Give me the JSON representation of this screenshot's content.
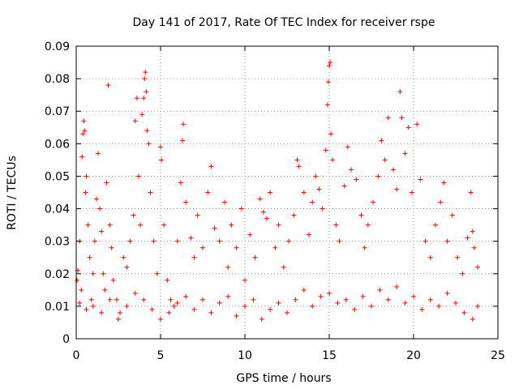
{
  "chart_data": {
    "type": "scatter",
    "title": "Day 141 of 2017, Rate Of TEC Index for receiver rspe",
    "xlabel": "GPS time / hours",
    "ylabel": "ROTI / TECUs",
    "xlim": [
      0,
      25
    ],
    "ylim": [
      0,
      0.09
    ],
    "xticks": [
      "0",
      "5",
      "10",
      "15",
      "20",
      "25"
    ],
    "yticks": [
      "0",
      "0.01",
      "0.02",
      "0.03",
      "0.04",
      "0.05",
      "0.06",
      "0.07",
      "0.08",
      "0.09"
    ],
    "grid": true,
    "marker": "+",
    "color": "#ff0000",
    "series": [
      {
        "points": [
          [
            0.05,
            0.018
          ],
          [
            0.1,
            0.021
          ],
          [
            0.2,
            0.03
          ],
          [
            0.3,
            0.015
          ],
          [
            0.35,
            0.056
          ],
          [
            0.4,
            0.063
          ],
          [
            0.45,
            0.067
          ],
          [
            0.5,
            0.064
          ],
          [
            0.55,
            0.045
          ],
          [
            0.6,
            0.05
          ],
          [
            0.7,
            0.035
          ],
          [
            0.8,
            0.025
          ],
          [
            0.9,
            0.012
          ],
          [
            1.0,
            0.02
          ],
          [
            1.1,
            0.03
          ],
          [
            1.2,
            0.043
          ],
          [
            1.3,
            0.057
          ],
          [
            1.4,
            0.04
          ],
          [
            1.5,
            0.033
          ],
          [
            1.6,
            0.02
          ],
          [
            1.7,
            0.015
          ],
          [
            1.8,
            0.048
          ],
          [
            1.9,
            0.078
          ],
          [
            2.0,
            0.035
          ],
          [
            2.1,
            0.028
          ],
          [
            2.2,
            0.018
          ],
          [
            2.4,
            0.012
          ],
          [
            2.6,
            0.008
          ],
          [
            2.8,
            0.025
          ],
          [
            3.0,
            0.022
          ],
          [
            3.2,
            0.03
          ],
          [
            3.4,
            0.038
          ],
          [
            3.5,
            0.067
          ],
          [
            3.6,
            0.074
          ],
          [
            3.7,
            0.05
          ],
          [
            3.8,
            0.035
          ],
          [
            3.9,
            0.069
          ],
          [
            4.0,
            0.074
          ],
          [
            4.05,
            0.08
          ],
          [
            4.1,
            0.082
          ],
          [
            4.15,
            0.076
          ],
          [
            4.2,
            0.064
          ],
          [
            4.3,
            0.06
          ],
          [
            4.4,
            0.045
          ],
          [
            4.6,
            0.03
          ],
          [
            4.8,
            0.02
          ],
          [
            5.0,
            0.059
          ],
          [
            5.05,
            0.055
          ],
          [
            5.2,
            0.035
          ],
          [
            5.4,
            0.018
          ],
          [
            5.6,
            0.012
          ],
          [
            5.8,
            0.01
          ],
          [
            6.0,
            0.03
          ],
          [
            6.2,
            0.048
          ],
          [
            6.3,
            0.061
          ],
          [
            6.35,
            0.066
          ],
          [
            6.5,
            0.042
          ],
          [
            6.8,
            0.031
          ],
          [
            7.0,
            0.025
          ],
          [
            7.2,
            0.038
          ],
          [
            7.5,
            0.028
          ],
          [
            7.8,
            0.045
          ],
          [
            8.0,
            0.053
          ],
          [
            8.2,
            0.034
          ],
          [
            8.5,
            0.03
          ],
          [
            8.8,
            0.042
          ],
          [
            9.0,
            0.022
          ],
          [
            9.2,
            0.035
          ],
          [
            9.5,
            0.028
          ],
          [
            9.8,
            0.04
          ],
          [
            10.0,
            0.018
          ],
          [
            10.3,
            0.032
          ],
          [
            10.6,
            0.025
          ],
          [
            10.9,
            0.043
          ],
          [
            11.1,
            0.039
          ],
          [
            11.3,
            0.037
          ],
          [
            11.5,
            0.045
          ],
          [
            11.8,
            0.028
          ],
          [
            12.0,
            0.035
          ],
          [
            12.3,
            0.022
          ],
          [
            12.6,
            0.03
          ],
          [
            12.9,
            0.038
          ],
          [
            13.1,
            0.055
          ],
          [
            13.2,
            0.053
          ],
          [
            13.5,
            0.045
          ],
          [
            13.8,
            0.032
          ],
          [
            14.0,
            0.042
          ],
          [
            14.2,
            0.05
          ],
          [
            14.4,
            0.046
          ],
          [
            14.6,
            0.04
          ],
          [
            14.8,
            0.058
          ],
          [
            14.9,
            0.072
          ],
          [
            14.95,
            0.079
          ],
          [
            15.0,
            0.084
          ],
          [
            15.05,
            0.085
          ],
          [
            15.1,
            0.063
          ],
          [
            15.2,
            0.055
          ],
          [
            15.4,
            0.035
          ],
          [
            15.6,
            0.03
          ],
          [
            15.9,
            0.047
          ],
          [
            16.1,
            0.059
          ],
          [
            16.3,
            0.052
          ],
          [
            16.6,
            0.049
          ],
          [
            16.9,
            0.038
          ],
          [
            17.1,
            0.028
          ],
          [
            17.3,
            0.035
          ],
          [
            17.6,
            0.042
          ],
          [
            17.9,
            0.05
          ],
          [
            18.1,
            0.061
          ],
          [
            18.3,
            0.055
          ],
          [
            18.5,
            0.068
          ],
          [
            18.8,
            0.052
          ],
          [
            19.0,
            0.046
          ],
          [
            19.2,
            0.076
          ],
          [
            19.3,
            0.068
          ],
          [
            19.5,
            0.057
          ],
          [
            19.7,
            0.065
          ],
          [
            19.9,
            0.045
          ],
          [
            20.2,
            0.066
          ],
          [
            20.4,
            0.049
          ],
          [
            20.7,
            0.03
          ],
          [
            21.0,
            0.025
          ],
          [
            21.3,
            0.035
          ],
          [
            21.6,
            0.042
          ],
          [
            21.8,
            0.048
          ],
          [
            22.0,
            0.03
          ],
          [
            22.3,
            0.038
          ],
          [
            22.6,
            0.025
          ],
          [
            22.9,
            0.02
          ],
          [
            23.2,
            0.031
          ],
          [
            23.4,
            0.045
          ],
          [
            23.5,
            0.033
          ],
          [
            23.6,
            0.028
          ],
          [
            23.8,
            0.022
          ],
          [
            0.2,
            0.011
          ],
          [
            0.6,
            0.009
          ],
          [
            1.0,
            0.01
          ],
          [
            1.5,
            0.008
          ],
          [
            2.0,
            0.012
          ],
          [
            2.5,
            0.006
          ],
          [
            3.0,
            0.01
          ],
          [
            3.5,
            0.014
          ],
          [
            4.0,
            0.012
          ],
          [
            4.5,
            0.009
          ],
          [
            5.0,
            0.006
          ],
          [
            5.5,
            0.008
          ],
          [
            6.0,
            0.011
          ],
          [
            6.5,
            0.013
          ],
          [
            7.0,
            0.009
          ],
          [
            7.5,
            0.012
          ],
          [
            8.0,
            0.008
          ],
          [
            8.5,
            0.011
          ],
          [
            9.0,
            0.013
          ],
          [
            9.5,
            0.007
          ],
          [
            10.0,
            0.01
          ],
          [
            10.5,
            0.012
          ],
          [
            11.0,
            0.006
          ],
          [
            11.5,
            0.009
          ],
          [
            12.0,
            0.011
          ],
          [
            12.5,
            0.008
          ],
          [
            13.0,
            0.012
          ],
          [
            13.5,
            0.015
          ],
          [
            14.0,
            0.01
          ],
          [
            14.5,
            0.013
          ],
          [
            15.0,
            0.014
          ],
          [
            15.5,
            0.011
          ],
          [
            16.0,
            0.012
          ],
          [
            16.5,
            0.009
          ],
          [
            17.0,
            0.013
          ],
          [
            17.5,
            0.01
          ],
          [
            18.0,
            0.015
          ],
          [
            18.5,
            0.012
          ],
          [
            19.0,
            0.016
          ],
          [
            19.5,
            0.011
          ],
          [
            20.0,
            0.013
          ],
          [
            20.5,
            0.009
          ],
          [
            21.0,
            0.012
          ],
          [
            21.5,
            0.01
          ],
          [
            22.0,
            0.014
          ],
          [
            22.5,
            0.011
          ],
          [
            23.0,
            0.008
          ],
          [
            23.5,
            0.006
          ],
          [
            23.8,
            0.01
          ]
        ]
      }
    ]
  }
}
